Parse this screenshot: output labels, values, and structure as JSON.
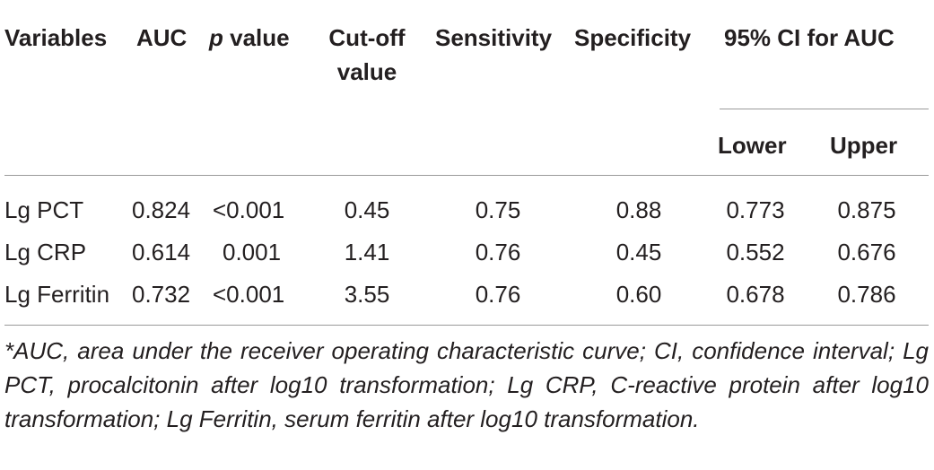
{
  "table": {
    "headers": {
      "variables": "Variables",
      "auc": "AUC",
      "p_italic": "p",
      "p_rest": " value",
      "cutoff_line1": "Cut-off",
      "cutoff_line2": "value",
      "sensitivity": "Sensitivity",
      "specificity": "Specificity",
      "ci": "95% CI for AUC",
      "lower": "Lower",
      "upper": "Upper"
    },
    "rows": [
      {
        "variable": "Lg PCT",
        "auc": "0.824",
        "p": "<0.001",
        "cutoff": "0.45",
        "sensitivity": "0.75",
        "specificity": "0.88",
        "lower": "0.773",
        "upper": "0.875"
      },
      {
        "variable": "Lg CRP",
        "auc": "0.614",
        "p": "0.001",
        "cutoff": "1.41",
        "sensitivity": "0.76",
        "specificity": "0.45",
        "lower": "0.552",
        "upper": "0.676"
      },
      {
        "variable": "Lg Ferritin",
        "auc": "0.732",
        "p": "<0.001",
        "cutoff": "3.55",
        "sensitivity": "0.76",
        "specificity": "0.60",
        "lower": "0.678",
        "upper": "0.786"
      }
    ],
    "footnote": "*AUC, area under the receiver operating characteristic curve; CI, confidence interval; Lg PCT, procalcitonin after log10 transformation; Lg CRP, C-reactive protein after log10 transformation; Lg Ferritin, serum ferritin after log10 transformation."
  }
}
